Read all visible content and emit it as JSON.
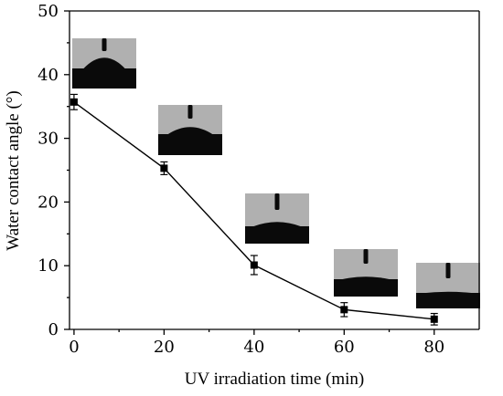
{
  "chart_data": {
    "type": "line",
    "xlabel": "UV irradiation time (min)",
    "ylabel": "Water contact angle (°)",
    "xlim": [
      -1,
      90
    ],
    "ylim": [
      0,
      50
    ],
    "xticks": [
      0,
      20,
      40,
      60,
      80
    ],
    "xtick_labels": [
      "0",
      "20",
      "40",
      "60",
      "80"
    ],
    "yticks": [
      0,
      10,
      20,
      30,
      40,
      50
    ],
    "ytick_labels": [
      "0",
      "10",
      "20",
      "30",
      "40",
      "50"
    ],
    "grid": false,
    "series": [
      {
        "x": [
          0,
          20,
          40,
          60,
          80
        ],
        "y": [
          35.7,
          25.3,
          10.1,
          3.1,
          1.6
        ],
        "error": [
          1.2,
          1.0,
          1.5,
          1.1,
          0.9
        ],
        "marker": "square",
        "color": "#000000"
      }
    ],
    "insets": [
      {
        "x": 0,
        "droplet_height": "high"
      },
      {
        "x": 20,
        "droplet_height": "medium"
      },
      {
        "x": 40,
        "droplet_height": "low"
      },
      {
        "x": 60,
        "droplet_height": "very low"
      },
      {
        "x": 80,
        "droplet_height": "flat"
      }
    ]
  }
}
